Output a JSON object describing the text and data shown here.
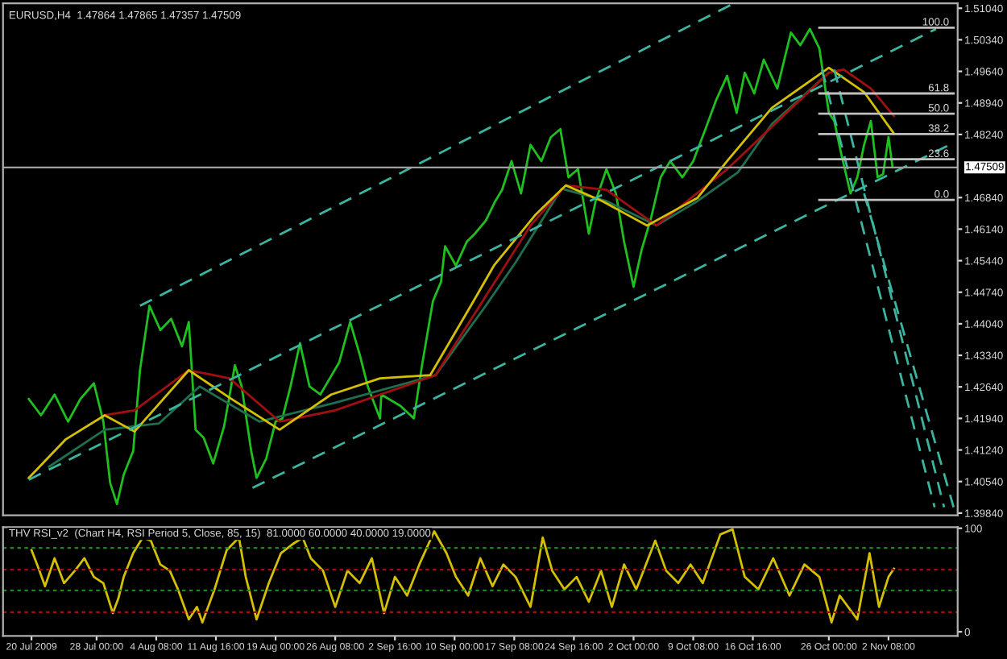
{
  "chart_data": [
    {
      "type": "line",
      "title": "EURUSD,H4  1.47864 1.47865 1.47357 1.47509",
      "xlim": [
        "2009-07-16T12:00",
        "2009-11-10T20:00"
      ],
      "ylim": [
        1.3979,
        1.5115
      ],
      "tick_labels": "y",
      "yticks": [
        {
          "value": 1.5104,
          "label": "1.51040"
        },
        {
          "value": 1.5034,
          "label": "1.50340"
        },
        {
          "value": 1.4964,
          "label": "1.49640"
        },
        {
          "value": 1.4894,
          "label": "1.48940"
        },
        {
          "value": 1.4824,
          "label": "1.48240"
        },
        {
          "value": 1.4684,
          "label": "1.46840"
        },
        {
          "value": 1.4614,
          "label": "1.46140"
        },
        {
          "value": 1.4544,
          "label": "1.45440"
        },
        {
          "value": 1.4474,
          "label": "1.44740"
        },
        {
          "value": 1.4404,
          "label": "1.44040"
        },
        {
          "value": 1.4334,
          "label": "1.43340"
        },
        {
          "value": 1.4264,
          "label": "1.42640"
        },
        {
          "value": 1.4194,
          "label": "1.41940"
        },
        {
          "value": 1.4124,
          "label": "1.41240"
        },
        {
          "value": 1.4054,
          "label": "1.40540"
        },
        {
          "value": 1.3984,
          "label": "1.39840"
        }
      ],
      "ref_lines": [
        {
          "axis": "y",
          "value": 1.47509,
          "label": "1.47509",
          "color": "#a0a0a0"
        }
      ],
      "series": [
        {
          "color": "#1fbf1f",
          "x": [
            "2009-07-19T16:00",
            "2009-07-21T04:00",
            "2009-07-22T20:00",
            "2009-07-24T12:00",
            "2009-07-26T00:00",
            "2009-07-27T16:00",
            "2009-07-28T20:00",
            "2009-07-29T16:00",
            "2009-07-30T12:00",
            "2009-07-31T08:00",
            "2009-08-01T12:00",
            "2009-08-02T08:00",
            "2009-08-03T12:00",
            "2009-08-04T20:00",
            "2009-08-06T04:00",
            "2009-08-07T12:00",
            "2009-08-08T08:00",
            "2009-08-09T04:00",
            "2009-08-10T04:00",
            "2009-08-11T08:00",
            "2009-08-12T16:00",
            "2009-08-14T00:00",
            "2009-08-14T20:00",
            "2009-08-16T00:00",
            "2009-08-16T16:00",
            "2009-08-17T20:00",
            "2009-08-19T00:00",
            "2009-08-19T20:00",
            "2009-08-20T20:00",
            "2009-08-22T00:00",
            "2009-08-23T04:00",
            "2009-08-24T12:00",
            "2009-08-25T16:00",
            "2009-08-26T20:00",
            "2009-08-28T04:00",
            "2009-08-29T08:00",
            "2009-08-30T08:00",
            "2009-08-31T20:00",
            "2009-09-01T00:00",
            "2009-09-03T08:00",
            "2009-09-05T00:00",
            "2009-09-06T00:00",
            "2009-09-07T08:00",
            "2009-09-08T08:00",
            "2009-09-08T20:00",
            "2009-09-10T04:00",
            "2009-09-11T12:00",
            "2009-09-12T12:00",
            "2009-09-13T20:00",
            "2009-09-15T00:00",
            "2009-09-15T20:00",
            "2009-09-17T00:00",
            "2009-09-18T04:00",
            "2009-09-19T08:00",
            "2009-09-20T16:00",
            "2009-09-21T20:00",
            "2009-09-23T00:00",
            "2009-09-24T00:00",
            "2009-09-25T04:00",
            "2009-09-26T12:00",
            "2009-09-27T08:00",
            "2009-09-28T16:00",
            "2009-09-29T20:00",
            "2009-09-30T20:00",
            "2009-10-02T00:00",
            "2009-10-03T00:00",
            "2009-10-04T04:00",
            "2009-10-05T08:00",
            "2009-10-06T12:00",
            "2009-10-08T00:00",
            "2009-10-09T08:00",
            "2009-10-10T20:00",
            "2009-10-12T04:00",
            "2009-10-13T12:00",
            "2009-10-14T16:00",
            "2009-10-15T16:00",
            "2009-10-16T20:00",
            "2009-10-18T00:00",
            "2009-10-19T16:00",
            "2009-10-21T08:00",
            "2009-10-22T12:00",
            "2009-10-23T16:00",
            "2009-10-24T20:00",
            "2009-10-26T00:00",
            "2009-10-26T16:00",
            "2009-10-27T12:00",
            "2009-10-28T16:00",
            "2009-10-29T12:00",
            "2009-10-30T08:00",
            "2009-10-31T04:00",
            "2009-11-01T00:00",
            "2009-11-01T16:00",
            "2009-11-02T08:00",
            "2009-11-02T20:00"
          ],
          "values": [
            1.4237,
            1.4201,
            1.4247,
            1.4187,
            1.4237,
            1.4272,
            1.4187,
            1.4051,
            1.4004,
            1.4069,
            1.4122,
            1.4301,
            1.4444,
            1.439,
            1.4415,
            1.4354,
            1.4408,
            1.4169,
            1.4151,
            1.4094,
            1.4176,
            1.4312,
            1.4265,
            1.4122,
            1.4062,
            1.4104,
            1.4187,
            1.4194,
            1.4265,
            1.4361,
            1.4265,
            1.4247,
            1.4283,
            1.4319,
            1.4408,
            1.4336,
            1.4265,
            1.4194,
            1.4247,
            1.4222,
            1.4194,
            1.4312,
            1.4454,
            1.4497,
            1.4576,
            1.4533,
            1.4586,
            1.4604,
            1.4633,
            1.4676,
            1.4701,
            1.4765,
            1.4693,
            1.4801,
            1.4765,
            1.4818,
            1.4836,
            1.4729,
            1.4747,
            1.4604,
            1.4676,
            1.4747,
            1.4693,
            1.4586,
            1.4486,
            1.4569,
            1.464,
            1.4729,
            1.4765,
            1.4729,
            1.4765,
            1.4836,
            1.4901,
            1.4954,
            1.4872,
            1.4961,
            1.4915,
            1.499,
            1.4926,
            1.505,
            1.5022,
            1.5058,
            1.5015,
            1.4872,
            1.4854,
            1.4783,
            1.4693,
            1.4729,
            1.4801,
            1.4854,
            1.4729,
            1.4736,
            1.4818,
            1.47509
          ]
        },
        {
          "color": "#1f6f4f",
          "x": [
            "2009-07-22T04:00",
            "2009-07-29T00:00",
            "2009-08-04T16:00",
            "2009-08-09T16:00",
            "2009-08-17T00:00",
            "2009-08-26T08:00",
            "2009-09-07T16:00",
            "2009-09-13T20:00",
            "2009-09-17T12:00",
            "2009-09-23T04:00",
            "2009-09-28T16:00",
            "2009-10-04T20:00",
            "2009-10-09T20:00",
            "2009-10-14T20:00",
            "2009-10-19T00:00",
            "2009-10-26T00:00"
          ],
          "values": [
            1.4087,
            1.4169,
            1.4183,
            1.4265,
            1.4187,
            1.4229,
            1.429,
            1.4444,
            1.454,
            1.4704,
            1.4676,
            1.4622,
            1.4676,
            1.474,
            1.4847,
            1.4961
          ]
        },
        {
          "color": "#a01010",
          "x": [
            "2009-07-29T00:00",
            "2009-08-01T16:00",
            "2009-08-08T08:00",
            "2009-08-13T08:00",
            "2009-08-19T12:00",
            "2009-08-26T08:00",
            "2009-09-07T16:00",
            "2009-09-19T08:00",
            "2009-09-23T16:00",
            "2009-09-28T16:00",
            "2009-10-04T20:00",
            "2009-10-13T12:00",
            "2009-10-26T00:00",
            "2009-10-27T20:00",
            "2009-10-31T04:00",
            "2009-11-03T00:00"
          ],
          "values": [
            1.4201,
            1.4212,
            1.4301,
            1.4283,
            1.4187,
            1.4212,
            1.429,
            1.4622,
            1.4711,
            1.4701,
            1.4622,
            1.4747,
            1.4961,
            1.4968,
            1.4926,
            1.4865
          ]
        },
        {
          "color": "#d4c000",
          "x": [
            "2009-07-19T16:00",
            "2009-07-24T04:00",
            "2009-07-29T00:00",
            "2009-08-01T16:00",
            "2009-08-08T08:00",
            "2009-08-13T08:00",
            "2009-08-19T12:00",
            "2009-08-25T20:00",
            "2009-08-31T20:00",
            "2009-09-07T00:00",
            "2009-09-12T00:00",
            "2009-09-14T20:00",
            "2009-09-20T00:00",
            "2009-09-23T16:00",
            "2009-09-28T04:00",
            "2009-10-03T16:00",
            "2009-10-09T20:00",
            "2009-10-13T12:00",
            "2009-10-19T00:00",
            "2009-10-26T00:00",
            "2009-10-30T08:00",
            "2009-11-03T00:00"
          ],
          "values": [
            1.4062,
            1.4147,
            1.4201,
            1.4165,
            1.4301,
            1.424,
            1.4169,
            1.4247,
            1.4283,
            1.429,
            1.4444,
            1.4533,
            1.4647,
            1.4711,
            1.4676,
            1.4622,
            1.4683,
            1.4765,
            1.4883,
            1.4972,
            1.4918,
            1.4826
          ]
        },
        {
          "color": "#3cb5a0",
          "line_style": "dashed",
          "x": [
            "2009-08-02T08:00",
            "2009-10-14T08:00"
          ],
          "values": [
            1.4444,
            1.5115
          ]
        },
        {
          "color": "#3cb5a0",
          "line_style": "dashed",
          "x": [
            "2009-07-19T16:00",
            "2009-11-08T04:00"
          ],
          "values": [
            1.4058,
            1.5058
          ]
        },
        {
          "color": "#3cb5a0",
          "line_style": "dashed",
          "x": [
            "2009-08-16T04:00",
            "2009-11-09T20:00"
          ],
          "values": [
            1.404,
            1.4801
          ]
        },
        {
          "color": "#3cb5a0",
          "line_style": "dashed",
          "x": [
            "2009-10-25T04:00",
            "2009-11-08T00:00"
          ],
          "values": [
            1.4968,
            1.3997
          ]
        },
        {
          "color": "#3cb5a0",
          "line_style": "dashed",
          "x": [
            "2009-10-26T16:00",
            "2009-11-09T04:00"
          ],
          "values": [
            1.4968,
            1.3997
          ]
        },
        {
          "color": "#3cb5a0",
          "line_style": "dashed",
          "x": [
            "2009-10-30T08:00",
            "2009-11-10T08:00"
          ],
          "values": [
            1.4693,
            1.3997
          ]
        },
        {
          "name": "100.0",
          "color": "#c0c0c0",
          "x": [
            "2009-10-24T20:00",
            "2009-11-10T08:00"
          ],
          "values": [
            1.5061,
            1.5061
          ]
        },
        {
          "name": "61.8",
          "color": "#c0c0c0",
          "x": [
            "2009-10-24T20:00",
            "2009-11-10T08:00"
          ],
          "values": [
            1.4915,
            1.4915
          ]
        },
        {
          "name": "50.0",
          "color": "#c0c0c0",
          "x": [
            "2009-10-24T20:00",
            "2009-11-10T08:00"
          ],
          "values": [
            1.487,
            1.487
          ]
        },
        {
          "name": "38.2",
          "color": "#c0c0c0",
          "x": [
            "2009-10-24T20:00",
            "2009-11-10T08:00"
          ],
          "values": [
            1.4825,
            1.4825
          ]
        },
        {
          "name": "23.6",
          "color": "#c0c0c0",
          "x": [
            "2009-10-24T20:00",
            "2009-11-10T08:00"
          ],
          "values": [
            1.4769,
            1.4769
          ]
        },
        {
          "name": "0.0",
          "color": "#c0c0c0",
          "x": [
            "2009-10-24T20:00",
            "2009-11-10T08:00"
          ],
          "values": [
            1.4679,
            1.4679
          ]
        }
      ]
    },
    {
      "type": "line",
      "title": "THV RSI_v2  (Chart H4, RSI Period 5, Close, 85, 15)  81.0000 60.0000 40.0000 19.0000",
      "xlim": [
        "2009-07-16T12:00",
        "2009-11-10T20:00"
      ],
      "ylim": [
        -4,
        101
      ],
      "yticks": [
        0,
        100
      ],
      "xticks": [
        {
          "value": "2009-07-20T00:00",
          "label": "20 Jul 2009"
        },
        {
          "value": "2009-07-28T00:00",
          "label": "28 Jul 00:00"
        },
        {
          "value": "2009-08-04T08:00",
          "label": "4 Aug 08:00"
        },
        {
          "value": "2009-08-11T16:00",
          "label": "11 Aug 16:00"
        },
        {
          "value": "2009-08-19T00:00",
          "label": "19 Aug 00:00"
        },
        {
          "value": "2009-08-26T08:00",
          "label": "26 Aug 08:00"
        },
        {
          "value": "2009-09-02T16:00",
          "label": "2 Sep 16:00"
        },
        {
          "value": "2009-09-10T00:00",
          "label": "10 Sep 00:00"
        },
        {
          "value": "2009-09-17T08:00",
          "label": "17 Sep 08:00"
        },
        {
          "value": "2009-09-24T16:00",
          "label": "24 Sep 16:00"
        },
        {
          "value": "2009-10-02T00:00",
          "label": "2 Oct 00:00"
        },
        {
          "value": "2009-10-09T08:00",
          "label": "9 Oct 08:00"
        },
        {
          "value": "2009-10-16T16:00",
          "label": "16 Oct 16:00"
        },
        {
          "value": "2009-10-26T00:00",
          "label": "26 Oct 00:00"
        },
        {
          "value": "2009-11-02T08:00",
          "label": "2 Nov 08:00"
        }
      ],
      "ref_lines": [
        {
          "axis": "y",
          "value": 81,
          "color": "#1a8a1a",
          "line_style": "dotted"
        },
        {
          "axis": "y",
          "value": 60,
          "color": "#a01010",
          "line_style": "dotted"
        },
        {
          "axis": "y",
          "value": 40,
          "color": "#1a8a1a",
          "line_style": "dotted"
        },
        {
          "axis": "y",
          "value": 19,
          "color": "#a01010",
          "line_style": "dotted"
        }
      ],
      "series": [
        {
          "color": "#d4c000",
          "x": [
            "2009-07-20T00:00",
            "2009-07-20T20:00",
            "2009-07-21T16:00",
            "2009-07-22T20:00",
            "2009-07-24T00:00",
            "2009-07-25T08:00",
            "2009-07-26T12:00",
            "2009-07-27T16:00",
            "2009-07-28T20:00",
            "2009-07-30T00:00",
            "2009-07-30T16:00",
            "2009-07-31T08:00",
            "2009-08-01T12:00",
            "2009-08-02T16:00",
            "2009-08-03T16:00",
            "2009-08-04T20:00",
            "2009-08-06T00:00",
            "2009-08-07T00:00",
            "2009-08-08T08:00",
            "2009-08-09T08:00",
            "2009-08-10T00:00",
            "2009-08-11T12:00",
            "2009-08-13T00:00",
            "2009-08-14T12:00",
            "2009-08-15T08:00",
            "2009-08-16T16:00",
            "2009-08-18T04:00",
            "2009-08-19T16:00",
            "2009-08-21T04:00",
            "2009-08-22T08:00",
            "2009-08-23T08:00",
            "2009-08-24T20:00",
            "2009-08-26T08:00",
            "2009-08-27T20:00",
            "2009-08-29T08:00",
            "2009-08-30T20:00",
            "2009-09-01T08:00",
            "2009-09-02T16:00",
            "2009-09-04T04:00",
            "2009-09-05T16:00",
            "2009-09-07T12:00",
            "2009-09-09T00:00",
            "2009-09-10T04:00",
            "2009-09-11T16:00",
            "2009-09-13T04:00",
            "2009-09-14T16:00",
            "2009-09-16T00:00",
            "2009-09-17T12:00",
            "2009-09-19T08:00",
            "2009-09-20T20:00",
            "2009-09-22T00:00",
            "2009-09-23T12:00",
            "2009-09-25T00:00",
            "2009-09-26T12:00",
            "2009-09-28T00:00",
            "2009-09-29T08:00",
            "2009-09-30T20:00",
            "2009-10-02T08:00",
            "2009-10-04T16:00",
            "2009-10-06T00:00",
            "2009-10-07T12:00",
            "2009-10-09T00:00",
            "2009-10-10T12:00",
            "2009-10-12T16:00",
            "2009-10-14T04:00",
            "2009-10-15T16:00",
            "2009-10-17T08:00",
            "2009-10-19T04:00",
            "2009-10-21T04:00",
            "2009-10-23T00:00",
            "2009-10-24T20:00",
            "2009-10-26T08:00",
            "2009-10-27T08:00",
            "2009-10-29T12:00",
            "2009-10-31T00:00",
            "2009-11-01T04:00",
            "2009-11-02T08:00",
            "2009-11-03T00:00"
          ],
          "values": [
            79,
            62,
            44,
            71,
            47,
            59,
            71,
            53,
            47,
            18,
            32,
            53,
            76,
            91,
            88,
            65,
            59,
            41,
            12,
            24,
            9,
            41,
            79,
            91,
            53,
            12,
            47,
            76,
            85,
            91,
            71,
            59,
            24,
            59,
            47,
            71,
            18,
            53,
            35,
            65,
            97,
            76,
            53,
            35,
            71,
            44,
            65,
            53,
            24,
            91,
            59,
            41,
            53,
            29,
            59,
            24,
            65,
            41,
            88,
            59,
            47,
            65,
            47,
            94,
            99,
            53,
            41,
            71,
            35,
            65,
            53,
            9,
            35,
            12,
            76,
            24,
            53,
            61
          ]
        }
      ]
    }
  ]
}
